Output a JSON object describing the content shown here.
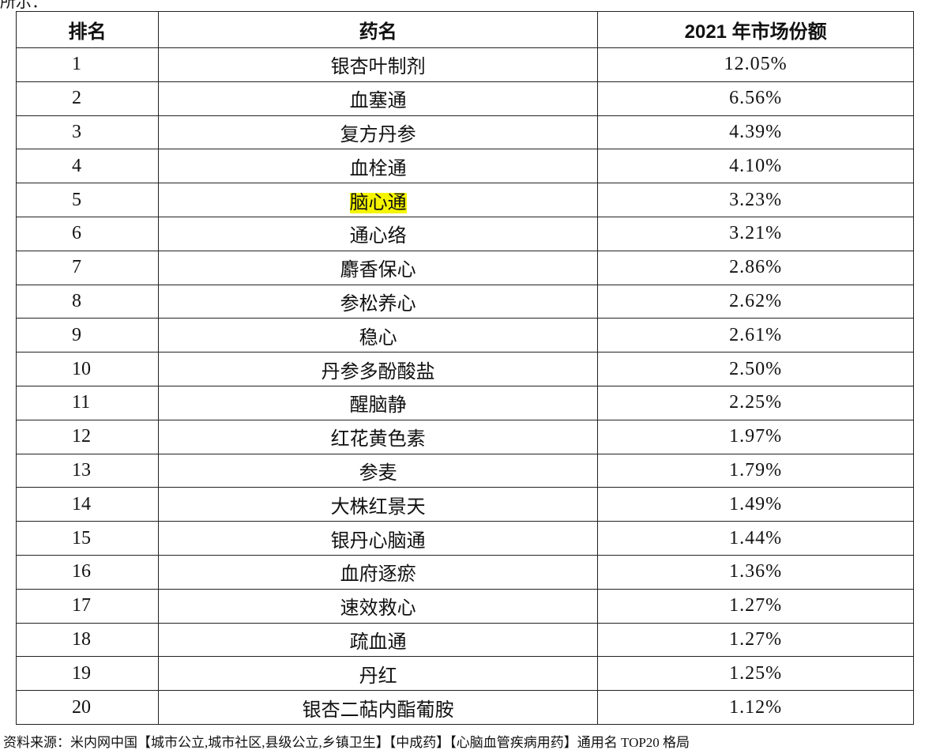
{
  "intro": "所示：",
  "table": {
    "headers": [
      "排名",
      "药名",
      "2021 年市场份额"
    ],
    "rows": [
      [
        1,
        "银杏叶制剂",
        "12.05%"
      ],
      [
        2,
        "血塞通",
        "6.56%"
      ],
      [
        3,
        "复方丹参",
        "4.39%"
      ],
      [
        4,
        "血栓通",
        "4.10%"
      ],
      [
        5,
        "脑心通",
        "3.23%"
      ],
      [
        6,
        "通心络",
        "3.21%"
      ],
      [
        7,
        "麝香保心",
        "2.86%"
      ],
      [
        8,
        "参松养心",
        "2.62%"
      ],
      [
        9,
        "稳心",
        "2.61%"
      ],
      [
        10,
        "丹参多酚酸盐",
        "2.50%"
      ],
      [
        11,
        "醒脑静",
        "2.25%"
      ],
      [
        12,
        "红花黄色素",
        "1.97%"
      ],
      [
        13,
        "参麦",
        "1.79%"
      ],
      [
        14,
        "大株红景天",
        "1.49%"
      ],
      [
        15,
        "银丹心脑通",
        "1.44%"
      ],
      [
        16,
        "血府逐瘀",
        "1.36%"
      ],
      [
        17,
        "速效救心",
        "1.27%"
      ],
      [
        18,
        "疏血通",
        "1.27%"
      ],
      [
        19,
        "丹红",
        "1.25%"
      ],
      [
        20,
        "银杏二萜内酯葡胺",
        "1.12%"
      ]
    ]
  },
  "source": "资料来源：米内网中国【城市公立,城市社区,县级公立,乡镇卫生】【中成药】【心脑血管疾病用药】通用名 TOP20 格局"
}
